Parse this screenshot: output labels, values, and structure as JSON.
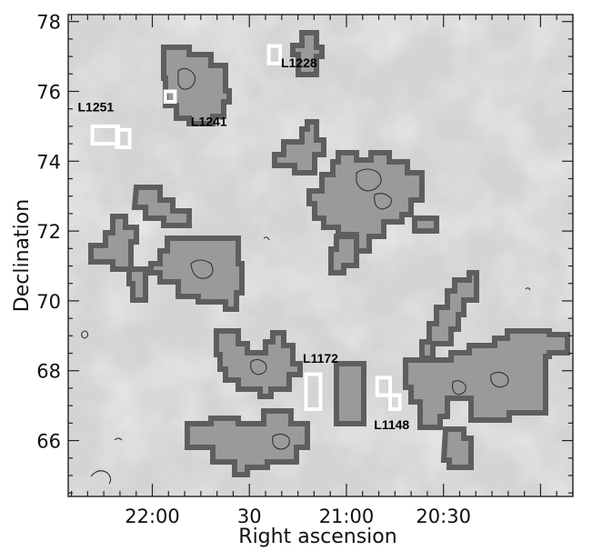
{
  "chart_data": {
    "type": "map",
    "xlabel": "Right ascension",
    "ylabel": "Declination",
    "x_ticks": [
      {
        "label": "22:00",
        "ra_min": 1320
      },
      {
        "label": "30",
        "ra_min": 1290
      },
      {
        "label": "21:00",
        "ra_min": 1260
      },
      {
        "label": "20:30",
        "ra_min": 1230
      }
    ],
    "y_ticks": [
      66,
      68,
      70,
      72,
      74,
      76,
      78
    ],
    "xlim_ra_min": [
      1346,
      1190
    ],
    "ylim": [
      64.4,
      78.2
    ],
    "annotations": [
      {
        "label": "L1251",
        "ra_min": 1331,
        "dec": 74.75
      },
      {
        "label": "L1241",
        "ra_min": 1307,
        "dec": 75.9
      },
      {
        "label": "L1228",
        "ra_min": 1280,
        "dec": 77.0
      },
      {
        "label": "L1172",
        "ra_min": 1268,
        "dec": 67.45
      },
      {
        "label": "L1148",
        "ra_min": 1246,
        "dec": 67.6
      }
    ],
    "boxes": [
      {
        "ra": [
          1338.5,
          1330.5
        ],
        "dec": [
          74.5,
          75.0
        ]
      },
      {
        "ra": [
          1331,
          1327
        ],
        "dec": [
          74.4,
          74.9
        ]
      },
      {
        "ra": [
          1316,
          1313
        ],
        "dec": [
          75.7,
          76.0
        ]
      },
      {
        "ra": [
          1284,
          1280.5
        ],
        "dec": [
          76.8,
          77.3
        ]
      },
      {
        "ra": [
          1272.5,
          1268
        ],
        "dec": [
          66.9,
          67.9
        ]
      },
      {
        "ra": [
          1250.5,
          1246.5
        ],
        "dec": [
          67.3,
          67.8
        ]
      },
      {
        "ra": [
          1246.5,
          1243.5
        ],
        "dec": [
          66.9,
          67.3
        ]
      }
    ],
    "colors": {
      "cloud_fill": "#9a9a9a",
      "cloud_edge": "#5e5e5e",
      "background": "#d4d4d4"
    }
  }
}
